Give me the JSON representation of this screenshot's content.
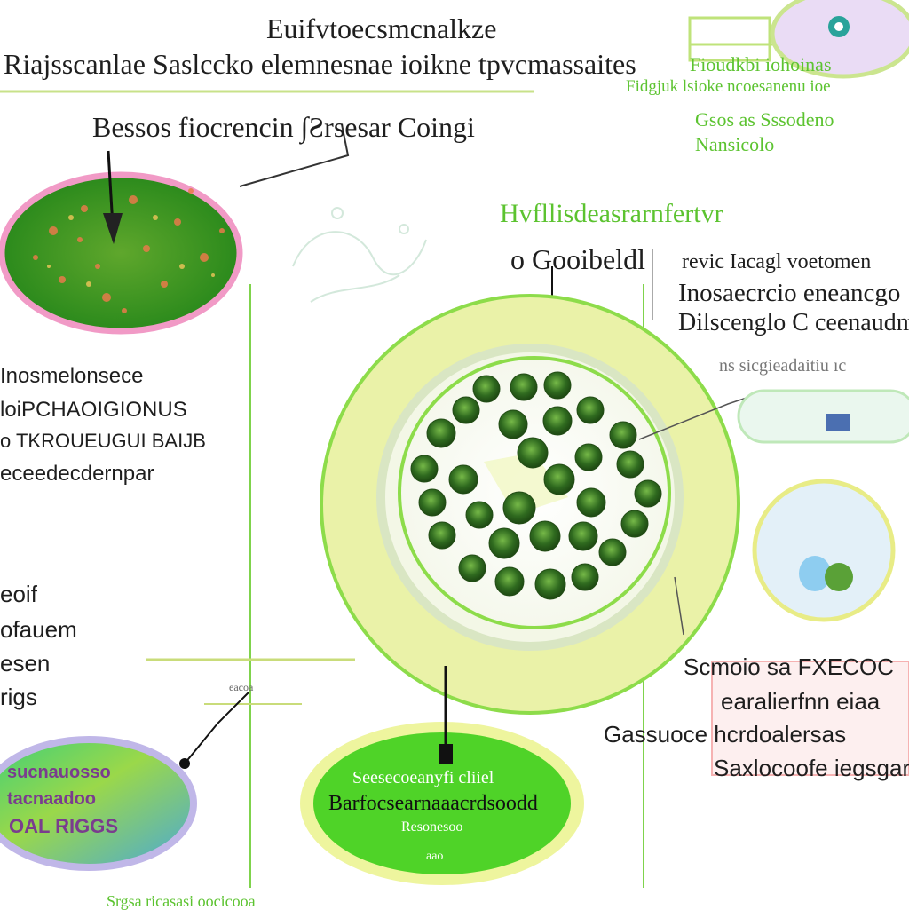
{
  "header": {
    "title_line1": "Euifvtoecsmcnalkze",
    "title_line2": "Riajsscanlae Saslccko elemnesnae ioikne tpvcmassaites",
    "subtitle": "Bessos fiocrencin ∫Ƨrsesar Coingi"
  },
  "top_right": {
    "line1": "Fioudkbi iohoinas",
    "line2": "Fidgjuk lsioke ncoesanenu ioe",
    "line3": "Gsos as Sssodeno",
    "line4": "Nansicolo"
  },
  "center_caption": {
    "heading": "Hvfllisdeasrarnfertvr",
    "subheading": "o Gooibeldl"
  },
  "right_notes": {
    "line1": "revic Iacagl voetomen",
    "line2": "Inosaecrcio eneancgo",
    "line3": "Dilscenglo C ceenaudm",
    "pointer": "ns sicgieadaitiu ıc"
  },
  "left_notes": {
    "line1": "Inosmelonsece",
    "line2": "loiPCHAOIGIONUS",
    "line3": "o TKROUEUGUI BAIJB",
    "line4": "eceedecdernpar"
  },
  "left_short": {
    "line1": "eoif",
    "line2": "ofauem",
    "line3": "esen",
    "line4": "rigs"
  },
  "lower_right": {
    "line1": "Scmoio sa FXECOC",
    "line2": "earalierfnn eiaa",
    "line3": "Gassuoce hcrdoalersas",
    "line4": "Saxlocoofe iegsgar"
  },
  "bottom_left_badge": {
    "line1": "sucnauosso",
    "line2": "tacnaadoo",
    "line3": "OAL RIGGS"
  },
  "bottom_center_badge": {
    "line1": "Seesecoeanyfi cliiel",
    "line2": "Barfocsearnaaacrdsoodd",
    "line3": "Resonesoo",
    "line4": "aao"
  },
  "bottom_strip": "Srgsa ricasasi oocicooa",
  "mid_left_line_label": "eacoa",
  "colors": {
    "accent_green": "#5cc330",
    "pale_yellow": "#eaf2a8",
    "dark_cell": "#2f6a1f",
    "pink": "#f4a6c8",
    "sky_blue": "#8ecdf0"
  }
}
